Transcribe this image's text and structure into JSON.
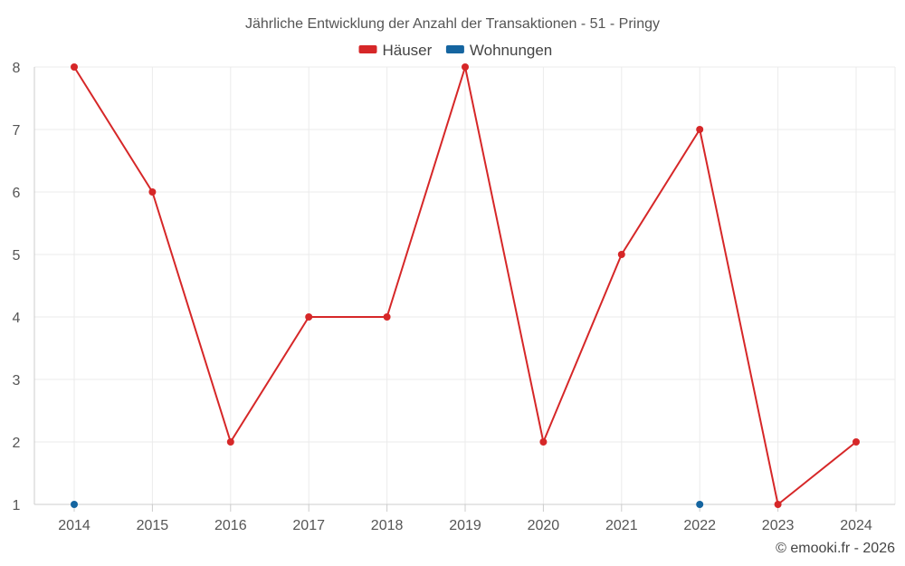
{
  "chart_data": {
    "type": "line",
    "title": "Jährliche Entwicklung der Anzahl der Transaktionen - 51 - Pringy",
    "categories": [
      "2014",
      "2015",
      "2016",
      "2017",
      "2018",
      "2019",
      "2020",
      "2021",
      "2022",
      "2023",
      "2024"
    ],
    "series": [
      {
        "name": "Häuser",
        "color": "#d62728",
        "values": [
          8,
          6,
          2,
          4,
          4,
          8,
          2,
          5,
          7,
          1,
          2
        ]
      },
      {
        "name": "Wohnungen",
        "color": "#1565a0",
        "values": [
          1,
          null,
          null,
          null,
          null,
          null,
          null,
          null,
          1,
          null,
          null
        ]
      }
    ],
    "yticks": [
      1,
      2,
      3,
      4,
      5,
      6,
      7,
      8
    ],
    "ylim": [
      1,
      8
    ],
    "grid": true,
    "legend_position": "top-center"
  },
  "credit": "© emooki.fr - 2026"
}
